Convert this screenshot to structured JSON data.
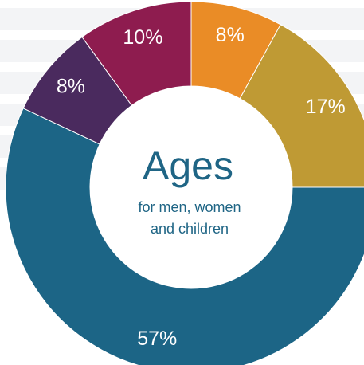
{
  "chart_data": {
    "type": "pie",
    "variant": "donut",
    "title": "Ages",
    "subtitle_line1": "for men, women",
    "subtitle_line2": "and children",
    "slices": [
      {
        "value": 8,
        "label": "8%",
        "color": "#ea8c26"
      },
      {
        "value": 17,
        "label": "17%",
        "color": "#bf9a34"
      },
      {
        "value": 57,
        "label": "57%",
        "color": "#1c6586"
      },
      {
        "value": 8,
        "label": "8%",
        "color": "#4a2a5e"
      },
      {
        "value": 10,
        "label": "10%",
        "color": "#8e1c4f"
      }
    ],
    "start_angle_deg": 0,
    "direction": "clockwise",
    "legend": "none"
  },
  "colors": {
    "center_fill": "#ffffff",
    "center_text": "#1f6585",
    "background_stripes": "#f3f4f6"
  }
}
